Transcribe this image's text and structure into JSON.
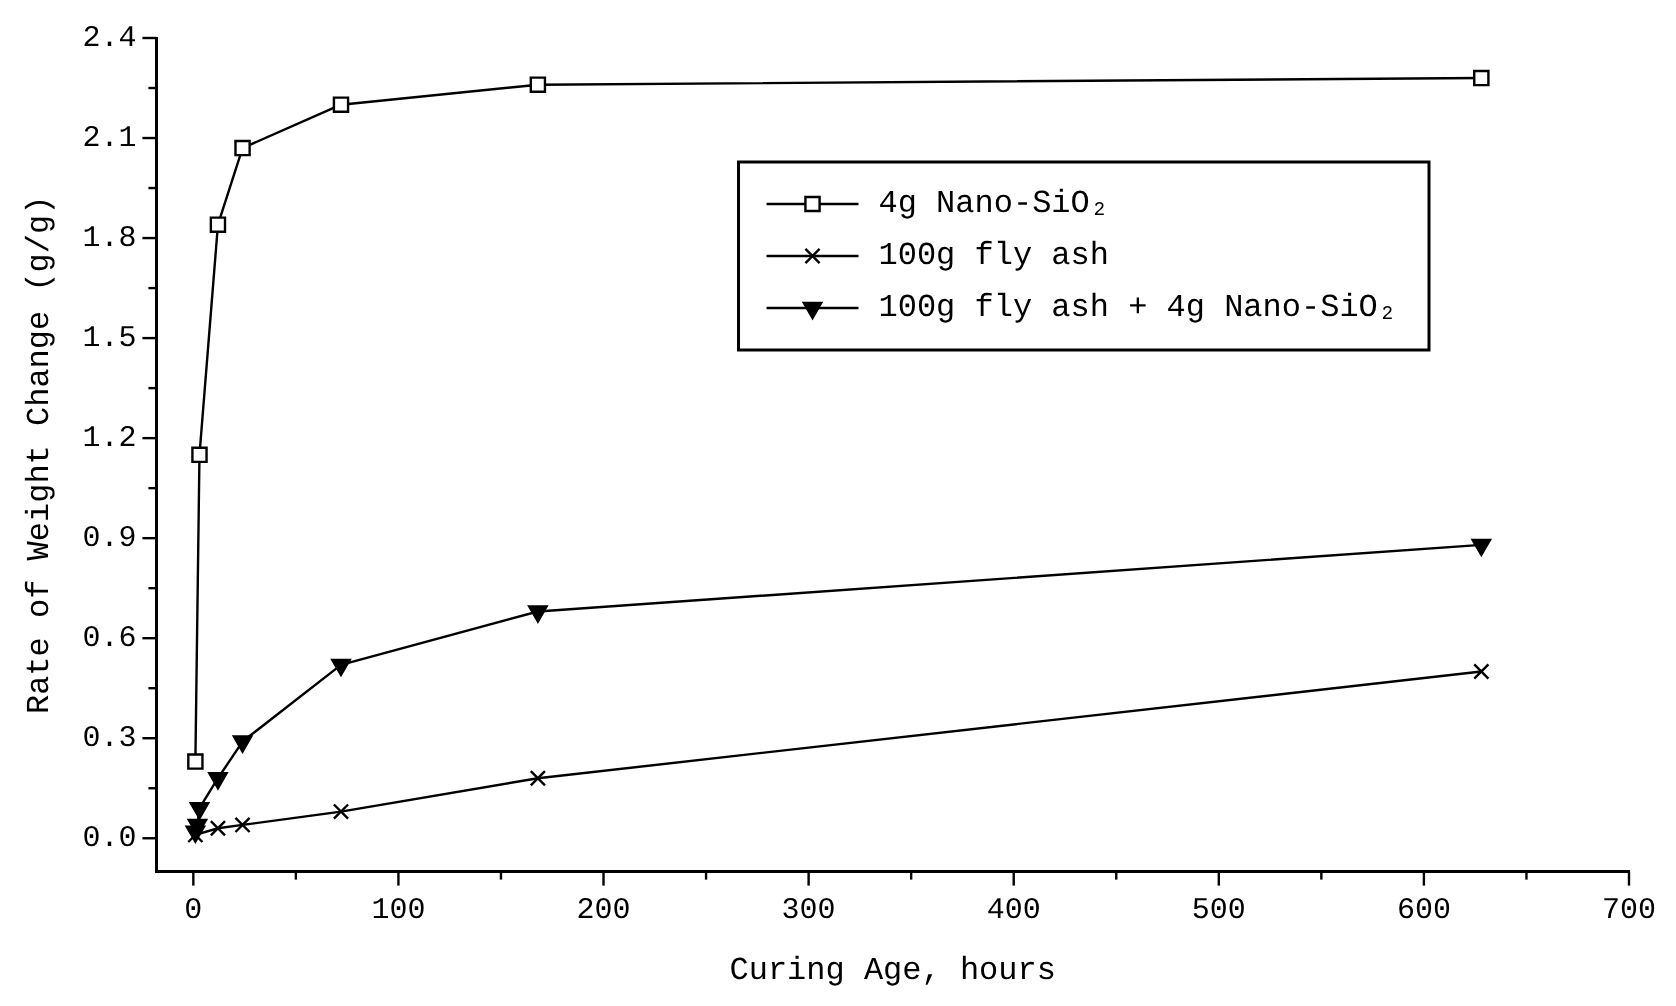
{
  "chart_data": {
    "type": "line",
    "xlabel": "Curing Age, hours",
    "ylabel": "Rate of Weight Change (g/g)",
    "xlim": [
      -18,
      700
    ],
    "xticks": [
      0,
      {
        "value": 50,
        "label": null
      },
      100,
      {
        "value": 150,
        "label": null
      },
      200,
      {
        "value": 250,
        "label": null
      },
      300,
      {
        "value": 350,
        "label": null
      },
      400,
      {
        "value": 450,
        "label": null
      },
      500,
      {
        "value": 550,
        "label": null
      },
      600,
      {
        "value": 650,
        "label": null
      },
      700
    ],
    "ylim": [
      -0.1,
      2.4
    ],
    "yticks": [
      {
        "value": 0,
        "label": "0.0"
      },
      {
        "value": 0.15,
        "label": null
      },
      0.3,
      {
        "value": 0.45,
        "label": null
      },
      0.6,
      {
        "value": 0.75,
        "label": null
      },
      0.9,
      {
        "value": 1.05,
        "label": null
      },
      1.2,
      {
        "value": 1.35,
        "label": null
      },
      1.5,
      {
        "value": 1.65,
        "label": null
      },
      1.8,
      {
        "value": 1.95,
        "label": null
      },
      2.1,
      {
        "value": 2.25,
        "label": null
      },
      2.4
    ],
    "grid": false,
    "legend": "top right",
    "line_style": "solid",
    "series": [
      {
        "name": "4g Nano-SiO₂",
        "color": "#000000",
        "marker": "square",
        "x": [
          1,
          3,
          12,
          24,
          72,
          168,
          628
        ],
        "values": [
          0.23,
          1.15,
          1.84,
          2.07,
          2.2,
          2.26,
          2.28
        ]
      },
      {
        "name": "100g fly ash",
        "color": "#000000",
        "marker": "cross",
        "x": [
          1,
          12,
          24,
          72,
          168,
          628
        ],
        "values": [
          0.01,
          0.03,
          0.04,
          0.08,
          0.18,
          0.5
        ]
      },
      {
        "name": "100g fly ash + 4g Nano-SiO₂",
        "color": "#000000",
        "marker": "triangle",
        "x": [
          1,
          2,
          3,
          12,
          24,
          72,
          168,
          628
        ],
        "values": [
          0.02,
          0.04,
          0.09,
          0.18,
          0.29,
          0.52,
          0.68,
          0.88
        ]
      }
    ]
  }
}
